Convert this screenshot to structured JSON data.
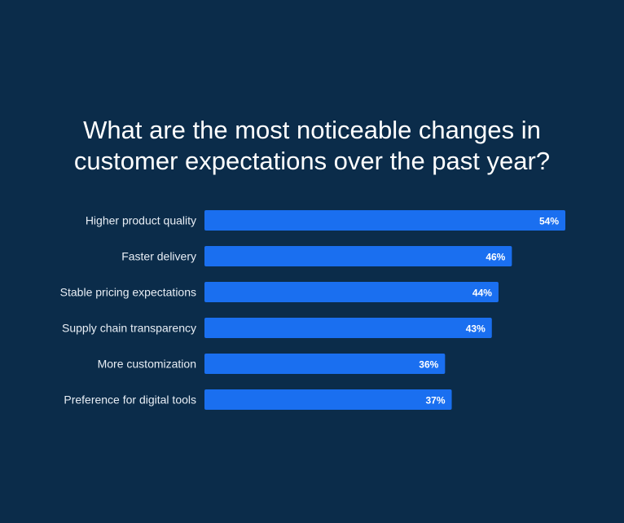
{
  "chart_data": {
    "type": "bar",
    "orientation": "horizontal",
    "title": "What are the most noticeable changes in\ncustomer expectations over the past year?",
    "categories": [
      "Higher product quality",
      "Faster delivery",
      "Stable pricing expectations",
      "Supply chain transparency",
      "More customization",
      "Preference for digital tools"
    ],
    "values": [
      54,
      46,
      44,
      43,
      36,
      37
    ],
    "value_labels": [
      "54%",
      "46%",
      "44%",
      "43%",
      "36%",
      "37%"
    ],
    "unit": "%",
    "xlim": [
      0,
      54
    ],
    "grid": false,
    "legend": "none",
    "colors": {
      "background": "#0b2c4a",
      "bar": "#1a6ff0",
      "text": "#ffffff"
    }
  }
}
